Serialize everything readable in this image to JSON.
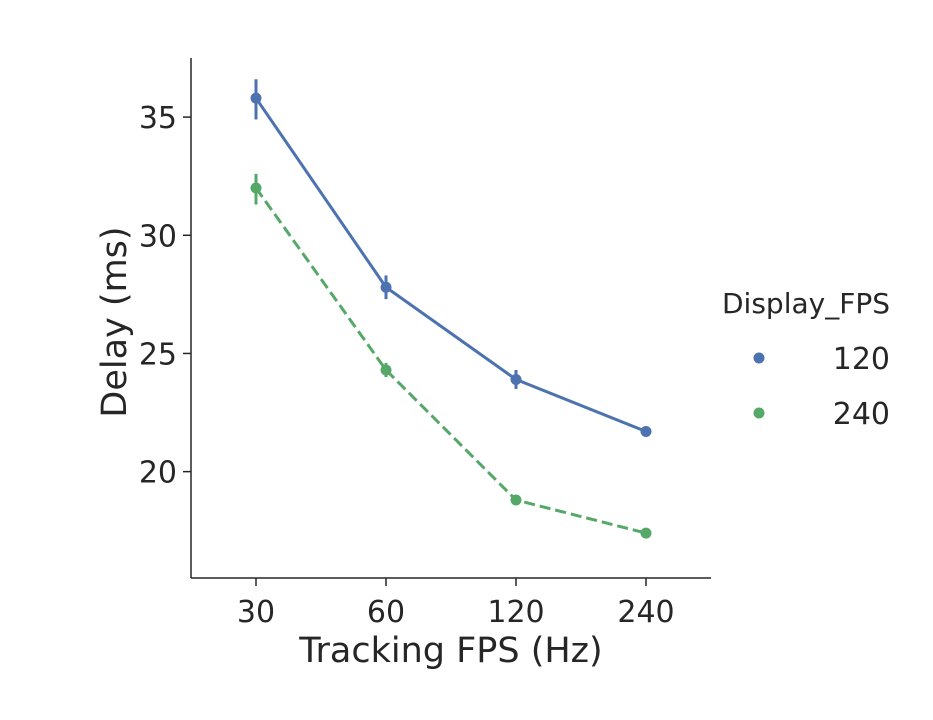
{
  "chart_data": {
    "type": "line",
    "xlabel": "Tracking FPS (Hz)",
    "ylabel": "Delay (ms)",
    "categories": [
      "30",
      "60",
      "120",
      "240"
    ],
    "y_ticks": [
      "20",
      "25",
      "30",
      "35"
    ],
    "ylim": [
      15.5,
      37.5
    ],
    "grid": false,
    "legend": {
      "title": "Display_FPS",
      "placement": "right"
    },
    "series": [
      {
        "name": "120",
        "color": "#4c72b0",
        "line_style": "solid",
        "values": [
          35.8,
          27.8,
          23.9,
          21.7
        ],
        "error_low": [
          34.9,
          27.3,
          23.5,
          21.6
        ],
        "error_high": [
          36.6,
          28.3,
          24.3,
          21.8
        ]
      },
      {
        "name": "240",
        "color": "#55a868",
        "line_style": "dashed",
        "values": [
          32.0,
          24.3,
          18.8,
          17.4
        ],
        "error_low": [
          31.3,
          24.0,
          18.7,
          17.3
        ],
        "error_high": [
          32.6,
          24.6,
          18.9,
          17.5
        ]
      }
    ]
  }
}
